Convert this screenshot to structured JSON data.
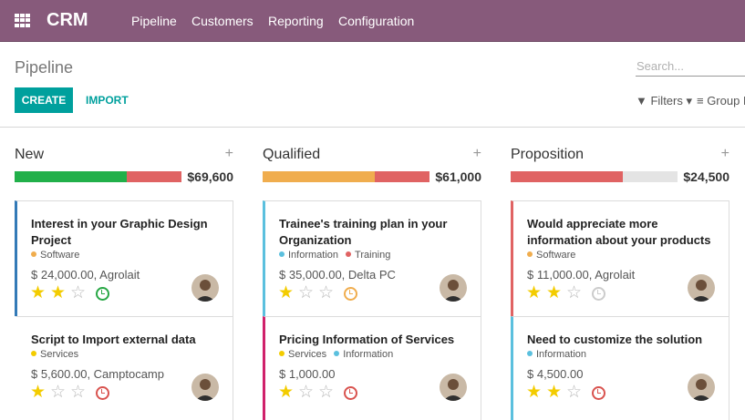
{
  "app": {
    "title": "CRM"
  },
  "menu": [
    {
      "label": "Pipeline"
    },
    {
      "label": "Customers"
    },
    {
      "label": "Reporting"
    },
    {
      "label": "Configuration"
    }
  ],
  "breadcrumb": "Pipeline",
  "search": {
    "placeholder": "Search..."
  },
  "buttons": {
    "create": "CREATE",
    "import": "IMPORT"
  },
  "filters": {
    "label": "▼ Filters ▾"
  },
  "groupby": {
    "label": "≡ Group By"
  },
  "colors": {
    "brand": "#875a7b",
    "primary": "#00a09d",
    "star": "#f3cc00",
    "progress_green": "#21b04a",
    "progress_red": "#e06363",
    "progress_orange": "#f0ad4e",
    "activity_ok": "#28a745",
    "activity_due": "#f0ad4e",
    "activity_late": "#d9534f",
    "activity_none": "#cccccc"
  },
  "columns": [
    {
      "title": "New",
      "total": "$69,600",
      "progress": [
        {
          "color": "#21b04a",
          "fraction": 0.67
        },
        {
          "color": "#e06363",
          "fraction": 0.33
        }
      ],
      "cards": [
        {
          "title": "Interest in your Graphic Design Project",
          "tags": [
            {
              "name": "Software",
              "color": "#f0ad4e"
            }
          ],
          "amount": "$ 24,000.00, Agrolait",
          "rating": 2,
          "activity": "#28a745",
          "border": "#337ab7"
        },
        {
          "title": "Script to Import external data",
          "tags": [
            {
              "name": "Services",
              "color": "#f3cc00"
            }
          ],
          "amount": "$ 5,600.00, Camptocamp",
          "rating": 1,
          "activity": "#d9534f",
          "border": "#ffffff"
        }
      ]
    },
    {
      "title": "Qualified",
      "total": "$61,000",
      "progress": [
        {
          "color": "#f0ad4e",
          "fraction": 0.67
        },
        {
          "color": "#e06363",
          "fraction": 0.33
        }
      ],
      "cards": [
        {
          "title": "Trainee's training plan in your Organization",
          "tags": [
            {
              "name": "Information",
              "color": "#5bc0de"
            },
            {
              "name": "Training",
              "color": "#e06363"
            }
          ],
          "amount": "$ 35,000.00, Delta PC",
          "rating": 1,
          "activity": "#f0ad4e",
          "border": "#5bc0de"
        },
        {
          "title": "Pricing Information of Services",
          "tags": [
            {
              "name": "Services",
              "color": "#f3cc00"
            },
            {
              "name": "Information",
              "color": "#5bc0de"
            }
          ],
          "amount": "$ 1,000.00",
          "rating": 1,
          "activity": "#d9534f",
          "border": "#d0216b"
        }
      ]
    },
    {
      "title": "Proposition",
      "total": "$24,500",
      "progress": [
        {
          "color": "#e06363",
          "fraction": 0.67
        },
        {
          "color": "#e4e4e4",
          "fraction": 0.33
        }
      ],
      "cards": [
        {
          "title": "Would appreciate more information about your products",
          "tags": [
            {
              "name": "Software",
              "color": "#f0ad4e"
            }
          ],
          "amount": "$ 11,000.00, Agrolait",
          "rating": 2,
          "activity": "#cccccc",
          "border": "#e06363"
        },
        {
          "title": "Need to customize the solution",
          "tags": [
            {
              "name": "Information",
              "color": "#5bc0de"
            }
          ],
          "amount": "$ 4,500.00",
          "rating": 2,
          "activity": "#d9534f",
          "border": "#5bc0de"
        }
      ]
    }
  ]
}
